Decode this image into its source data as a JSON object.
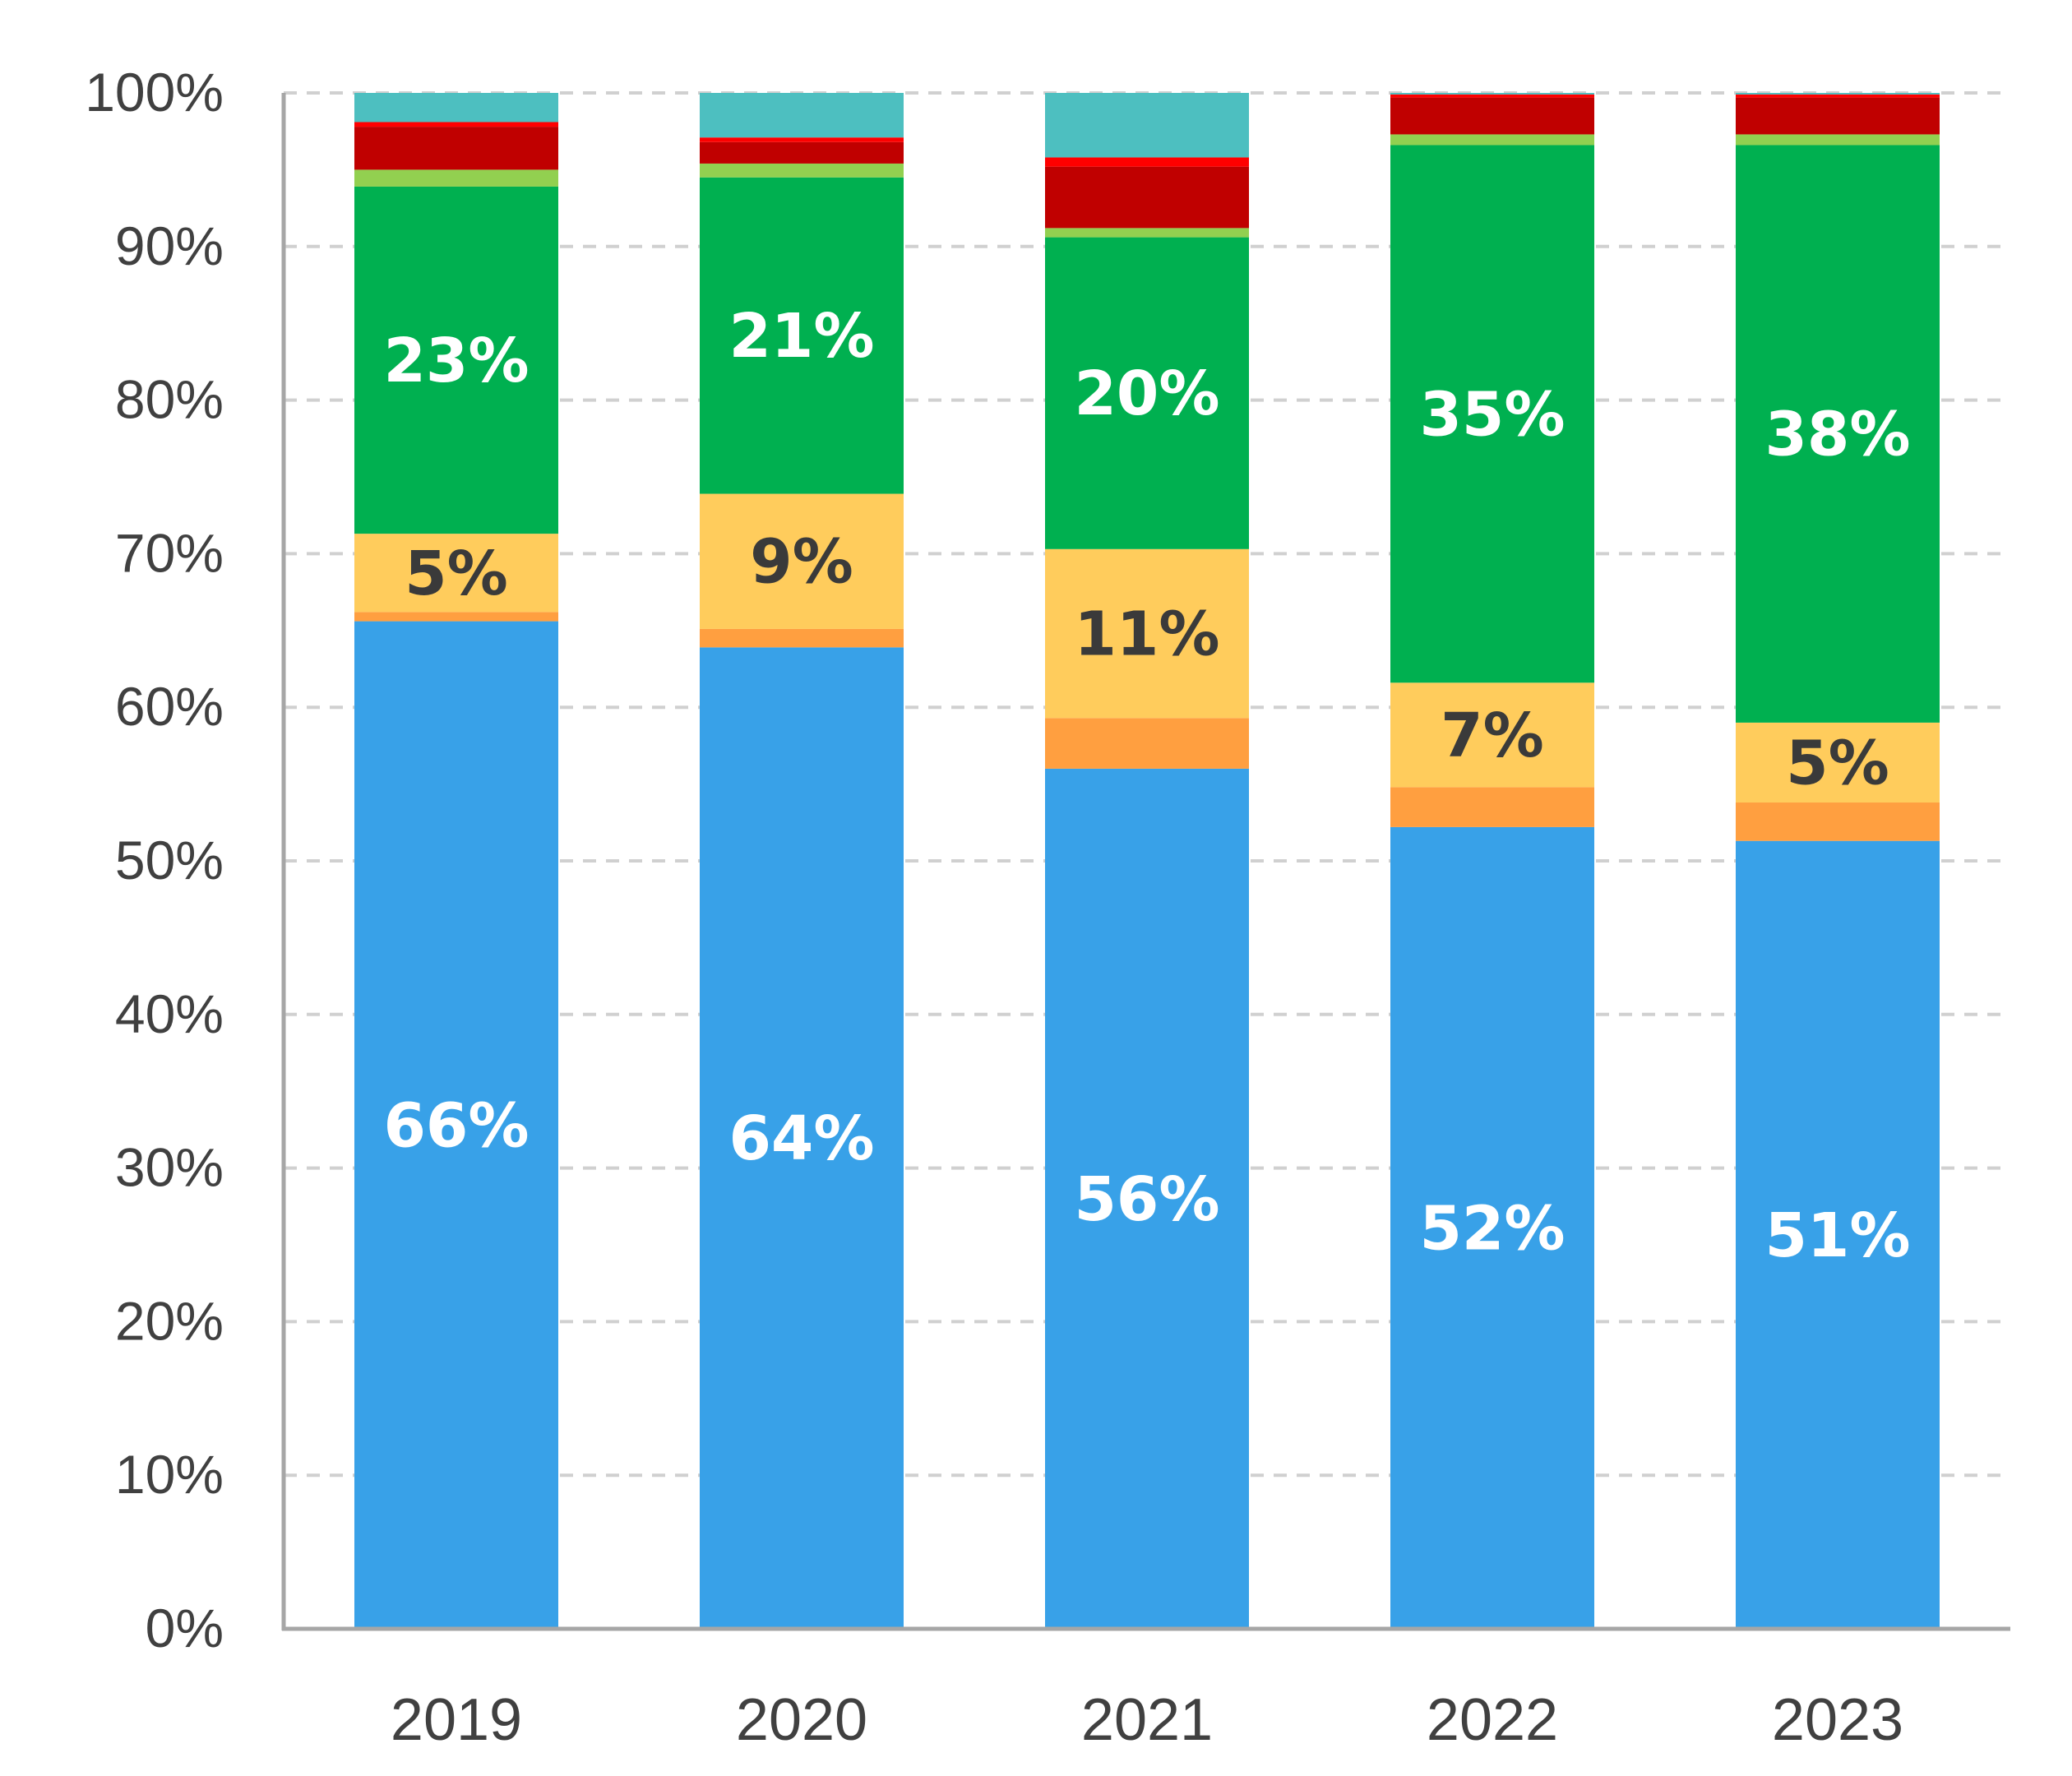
{
  "chart_data": {
    "type": "bar",
    "stacked": true,
    "normalized": true,
    "categories": [
      "2019",
      "2020",
      "2021",
      "2022",
      "2023"
    ],
    "ylim": [
      0,
      100
    ],
    "yticks": [
      0,
      10,
      20,
      30,
      40,
      50,
      60,
      70,
      80,
      90,
      100
    ],
    "y_tick_labels": [
      "0%",
      "10%",
      "20%",
      "30%",
      "40%",
      "50%",
      "60%",
      "70%",
      "80%",
      "90%",
      "100%"
    ],
    "grid": "horizontal-dashed",
    "legend": "none",
    "series": [
      {
        "color": "#38A1E8",
        "label_color": "#ffffff",
        "values": [
          65.6,
          63.9,
          56.0,
          52.2,
          51.3
        ],
        "labels": [
          "66%",
          "64%",
          "56%",
          "52%",
          "51%"
        ]
      },
      {
        "color": "#FF9F40",
        "label_color": "#3a3a3a",
        "values": [
          0.6,
          1.2,
          3.3,
          2.6,
          2.5
        ],
        "labels": [
          "",
          "",
          "",
          "",
          ""
        ]
      },
      {
        "color": "#FFCC5C",
        "label_color": "#3a3a3a",
        "values": [
          5.1,
          8.8,
          11.0,
          6.8,
          5.2
        ],
        "labels": [
          "5%",
          "9%",
          "11%",
          "7%",
          "5%"
        ]
      },
      {
        "color": "#00B050",
        "label_color": "#ffffff",
        "values": [
          22.6,
          20.6,
          20.3,
          35.0,
          37.6
        ],
        "labels": [
          "23%",
          "21%",
          "20%",
          "35%",
          "38%"
        ]
      },
      {
        "color": "#92D050",
        "label_color": "#3a3a3a",
        "values": [
          1.1,
          0.9,
          0.6,
          0.7,
          0.7
        ],
        "labels": [
          "",
          "",
          "",
          "",
          ""
        ]
      },
      {
        "color": "#C00000",
        "label_color": "#ffffff",
        "values": [
          2.8,
          1.4,
          4.0,
          2.4,
          2.4
        ],
        "labels": [
          "",
          "",
          "",
          "",
          ""
        ]
      },
      {
        "color": "#FF0000",
        "label_color": "#ffffff",
        "values": [
          0.3,
          0.3,
          0.6,
          0.2,
          0.2
        ],
        "labels": [
          "",
          "",
          "",
          "",
          ""
        ]
      },
      {
        "color": "#4DBFC0",
        "label_color": "#ffffff",
        "values": [
          1.9,
          2.9,
          4.2,
          0.1,
          0.1
        ],
        "labels": [
          "",
          "",
          "",
          "",
          ""
        ]
      }
    ]
  }
}
